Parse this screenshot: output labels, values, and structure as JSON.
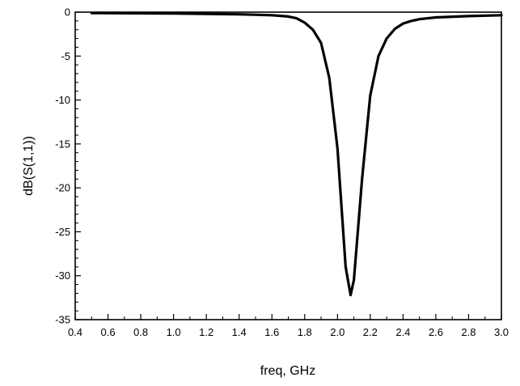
{
  "chart_data": {
    "type": "line",
    "title": "",
    "xlabel": "freq, GHz",
    "ylabel": "dB(S(1,1))",
    "xlim": [
      0.4,
      3.0
    ],
    "ylim": [
      -35,
      0
    ],
    "x_ticks": [
      "0.4",
      "0.6",
      "0.8",
      "1.0",
      "1.2",
      "1.4",
      "1.6",
      "1.8",
      "2.0",
      "2.2",
      "2.4",
      "2.6",
      "2.8",
      "3.0"
    ],
    "y_ticks": [
      "0",
      "-5",
      "-10",
      "-15",
      "-20",
      "-25",
      "-30",
      "-35"
    ],
    "grid": false,
    "series": [
      {
        "color": "#000000",
        "x": [
          0.5,
          1.0,
          1.4,
          1.6,
          1.7,
          1.75,
          1.8,
          1.85,
          1.9,
          1.95,
          2.0,
          2.05,
          2.08,
          2.1,
          2.15,
          2.2,
          2.25,
          2.3,
          2.35,
          2.4,
          2.45,
          2.5,
          2.6,
          2.8,
          3.0
        ],
        "y": [
          -0.1,
          -0.15,
          -0.25,
          -0.35,
          -0.5,
          -0.7,
          -1.2,
          -2.0,
          -3.5,
          -7.5,
          -15.5,
          -29.0,
          -32.2,
          -30.5,
          -19.0,
          -9.5,
          -5.0,
          -3.0,
          -1.9,
          -1.3,
          -1.0,
          -0.8,
          -0.6,
          -0.45,
          -0.35
        ]
      }
    ]
  }
}
